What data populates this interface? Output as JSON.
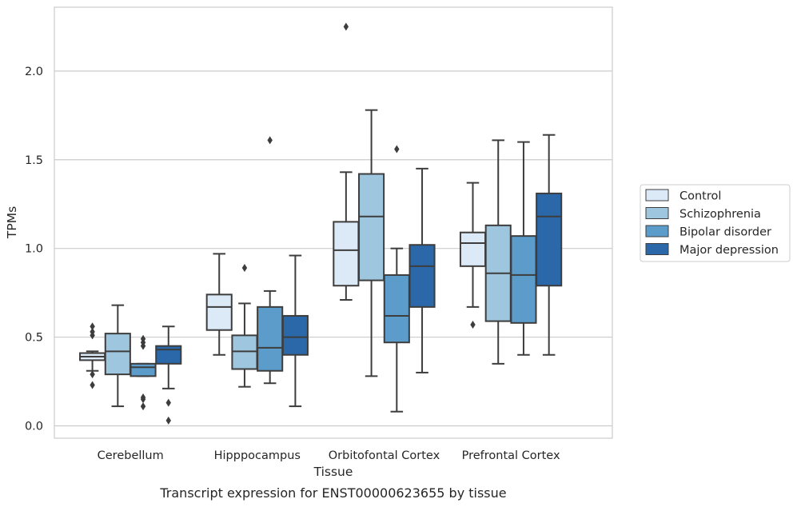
{
  "caption": "Transcript expression for ENST00000623655 by tissue",
  "chart_data": {
    "type": "box",
    "xlabel": "Tissue",
    "ylabel": "TPMs",
    "categories": [
      "Cerebellum",
      "Hipppocampus",
      "Orbitofontal Cortex",
      "Prefrontal Cortex"
    ],
    "ylim": [
      -0.07,
      2.36
    ],
    "yticks": [
      "0.0",
      "0.5",
      "1.0",
      "1.5",
      "2.0"
    ],
    "grid": "horizontal",
    "legend_position": "right",
    "series": [
      {
        "name": "Control",
        "color": "#dce9f6",
        "boxes": [
          {
            "whislo": 0.31,
            "q1": 0.37,
            "med": 0.39,
            "q3": 0.41,
            "whishi": 0.42,
            "fliers": [
              0.23,
              0.29,
              0.51,
              0.53,
              0.56
            ]
          },
          {
            "whislo": 0.4,
            "q1": 0.54,
            "med": 0.67,
            "q3": 0.74,
            "whishi": 0.97,
            "fliers": []
          },
          {
            "whislo": 0.71,
            "q1": 0.79,
            "med": 0.99,
            "q3": 1.15,
            "whishi": 1.43,
            "fliers": [
              2.25
            ]
          },
          {
            "whislo": 0.67,
            "q1": 0.9,
            "med": 1.03,
            "q3": 1.09,
            "whishi": 1.37,
            "fliers": [
              0.57
            ]
          }
        ]
      },
      {
        "name": "Schizophrenia",
        "color": "#9ec6de",
        "boxes": [
          {
            "whislo": 0.11,
            "q1": 0.29,
            "med": 0.42,
            "q3": 0.52,
            "whishi": 0.68,
            "fliers": []
          },
          {
            "whislo": 0.22,
            "q1": 0.32,
            "med": 0.42,
            "q3": 0.51,
            "whishi": 0.69,
            "fliers": [
              0.89
            ]
          },
          {
            "whislo": 0.28,
            "q1": 0.82,
            "med": 1.18,
            "q3": 1.42,
            "whishi": 1.78,
            "fliers": []
          },
          {
            "whislo": 0.35,
            "q1": 0.59,
            "med": 0.86,
            "q3": 1.13,
            "whishi": 1.61,
            "fliers": []
          }
        ]
      },
      {
        "name": "Bipolar disorder",
        "color": "#5b9ccb",
        "boxes": [
          {
            "whislo": 0.28,
            "q1": 0.28,
            "med": 0.33,
            "q3": 0.35,
            "whishi": 0.35,
            "fliers": [
              0.11,
              0.15,
              0.16,
              0.45,
              0.47,
              0.49
            ]
          },
          {
            "whislo": 0.24,
            "q1": 0.31,
            "med": 0.44,
            "q3": 0.67,
            "whishi": 0.76,
            "fliers": [
              1.61
            ]
          },
          {
            "whislo": 0.08,
            "q1": 0.47,
            "med": 0.62,
            "q3": 0.85,
            "whishi": 1.0,
            "fliers": [
              1.56
            ]
          },
          {
            "whislo": 0.4,
            "q1": 0.58,
            "med": 0.85,
            "q3": 1.07,
            "whishi": 1.6,
            "fliers": []
          }
        ]
      },
      {
        "name": "Major depression",
        "color": "#2a68a9",
        "boxes": [
          {
            "whislo": 0.21,
            "q1": 0.35,
            "med": 0.43,
            "q3": 0.45,
            "whishi": 0.56,
            "fliers": [
              0.03,
              0.13
            ]
          },
          {
            "whislo": 0.11,
            "q1": 0.4,
            "med": 0.5,
            "q3": 0.62,
            "whishi": 0.96,
            "fliers": []
          },
          {
            "whislo": 0.3,
            "q1": 0.67,
            "med": 0.9,
            "q3": 1.02,
            "whishi": 1.45,
            "fliers": []
          },
          {
            "whislo": 0.4,
            "q1": 0.79,
            "med": 1.18,
            "q3": 1.31,
            "whishi": 1.64,
            "fliers": []
          }
        ]
      }
    ]
  }
}
